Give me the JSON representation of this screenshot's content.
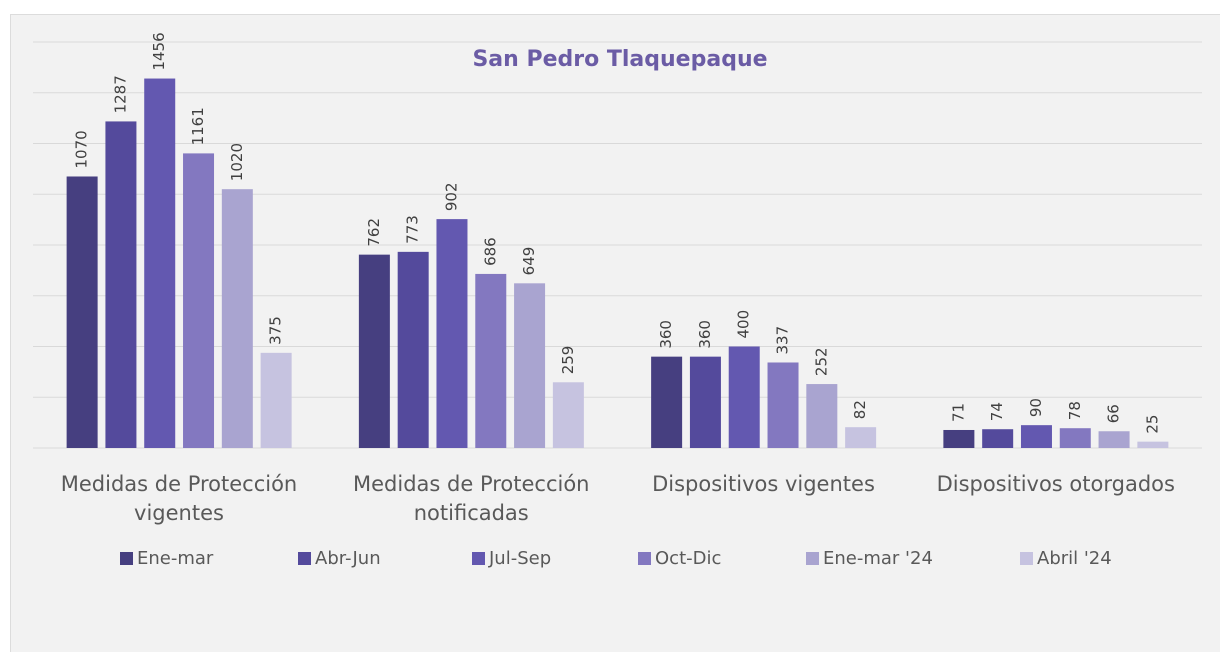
{
  "chart_data": {
    "type": "bar",
    "title": "San Pedro Tlaquepaque",
    "categories": [
      "Medidas de Protección vigentes",
      "Medidas de Protección notificadas",
      "Dispositivos vigentes",
      "Dispositivos otorgados"
    ],
    "series": [
      {
        "name": "Ene-mar",
        "color": "#463f80",
        "values": [
          1070,
          762,
          360,
          71
        ]
      },
      {
        "name": "Abr-Jun",
        "color": "#544a9c",
        "values": [
          1287,
          773,
          360,
          74
        ]
      },
      {
        "name": "Jul-Sep",
        "color": "#6358b0",
        "values": [
          1456,
          902,
          400,
          90
        ]
      },
      {
        "name": "Oct-Dic",
        "color": "#8378c0",
        "values": [
          1161,
          686,
          337,
          78
        ]
      },
      {
        "name": "Ene-mar '24",
        "color": "#a9a4d0",
        "values": [
          1020,
          649,
          252,
          66
        ]
      },
      {
        "name": "Abril '24",
        "color": "#c6c3e0",
        "values": [
          375,
          259,
          82,
          25
        ]
      }
    ],
    "ylim": [
      0,
      1600
    ],
    "yticks": [
      0,
      200,
      400,
      600,
      800,
      1000,
      1200,
      1400,
      1600
    ],
    "grid": true
  }
}
